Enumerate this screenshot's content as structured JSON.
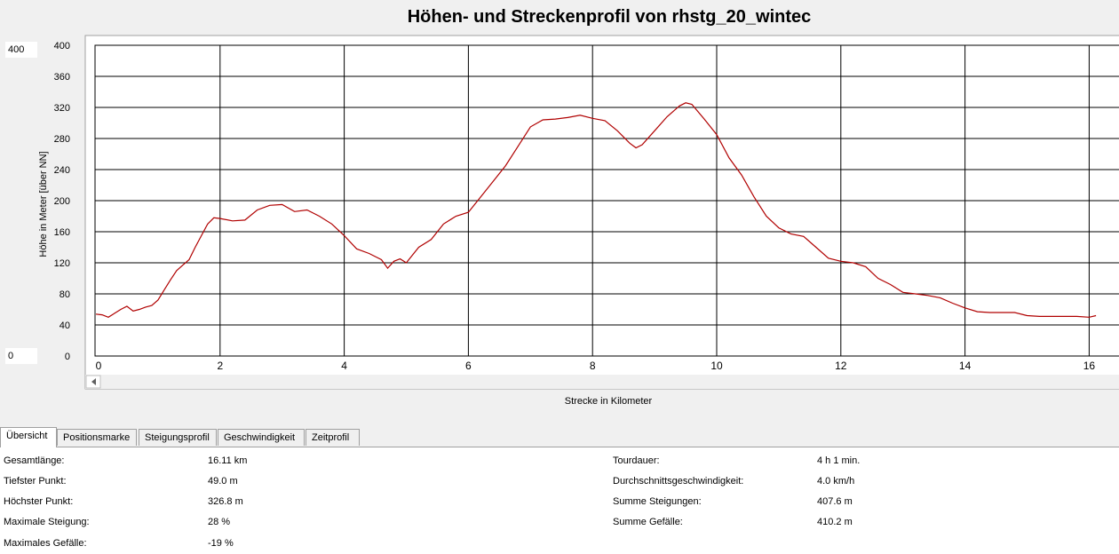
{
  "title": "Höhen- und Streckenprofil von rhstg_20_wintec",
  "y_max_input": "400",
  "y_min_input": "0",
  "chart_data": {
    "type": "line",
    "title": "Höhen- und Streckenprofil von rhstg_20_wintec",
    "xlabel": "Strecke in Kilometer",
    "ylabel": "Höhe in Meter [über NN]",
    "xlim": [
      0,
      16
    ],
    "ylim": [
      0,
      400
    ],
    "x_ticks": [
      "0",
      "2",
      "4",
      "6",
      "8",
      "10",
      "12",
      "14",
      "16"
    ],
    "y_ticks": [
      "0",
      "40",
      "80",
      "120",
      "160",
      "200",
      "240",
      "280",
      "320",
      "360",
      "400"
    ],
    "grid": true,
    "line_color": "#b00000",
    "series": [
      {
        "x": [
          0,
          0.1,
          0.2,
          0.3,
          0.4,
          0.5,
          0.6,
          0.7,
          0.8,
          0.9,
          1.0,
          1.1,
          1.2,
          1.3,
          1.4,
          1.5,
          1.6,
          1.7,
          1.8,
          1.9,
          2.0,
          2.2,
          2.4,
          2.6,
          2.8,
          3.0,
          3.2,
          3.4,
          3.6,
          3.8,
          4.0,
          4.2,
          4.4,
          4.6,
          4.7,
          4.8,
          4.9,
          5.0,
          5.2,
          5.4,
          5.6,
          5.8,
          6.0,
          6.2,
          6.4,
          6.6,
          6.8,
          7.0,
          7.2,
          7.4,
          7.6,
          7.8,
          8.0,
          8.2,
          8.4,
          8.6,
          8.7,
          8.8,
          9.0,
          9.2,
          9.4,
          9.5,
          9.6,
          9.8,
          10.0,
          10.2,
          10.4,
          10.6,
          10.8,
          11.0,
          11.2,
          11.4,
          11.6,
          11.8,
          12.0,
          12.2,
          12.4,
          12.6,
          12.8,
          13.0,
          13.2,
          13.4,
          13.6,
          13.8,
          14.0,
          14.2,
          14.4,
          14.6,
          14.8,
          15.0,
          15.2,
          15.4,
          15.6,
          15.8,
          16.0,
          16.11
        ],
        "y": [
          54,
          53,
          50,
          55,
          60,
          64,
          58,
          60,
          63,
          65,
          72,
          85,
          98,
          110,
          117,
          124,
          140,
          155,
          170,
          178,
          177,
          174,
          175,
          188,
          194,
          195,
          186,
          188,
          180,
          170,
          155,
          138,
          132,
          124,
          113,
          122,
          125,
          120,
          140,
          150,
          170,
          180,
          185,
          205,
          225,
          245,
          270,
          295,
          304,
          305,
          307,
          310,
          306,
          303,
          290,
          274,
          268,
          272,
          290,
          308,
          322,
          326,
          324,
          305,
          285,
          255,
          233,
          205,
          180,
          165,
          157,
          154,
          140,
          126,
          122,
          120,
          115,
          100,
          92,
          82,
          80,
          78,
          75,
          68,
          62,
          57,
          56,
          56,
          56,
          52,
          51,
          51,
          51,
          51,
          50,
          52
        ]
      }
    ]
  },
  "tabs": [
    "Übersicht",
    "Positionsmarke",
    "Steigungsprofil",
    "Geschwindigkeit",
    "Zeitprofil"
  ],
  "stats_left": [
    {
      "label": "Gesamtlänge:",
      "value": "16.11 km"
    },
    {
      "label": "Tiefster Punkt:",
      "value": "49.0 m"
    },
    {
      "label": "Höchster Punkt:",
      "value": "326.8 m"
    },
    {
      "label": "Maximale Steigung:",
      "value": "28 %"
    },
    {
      "label": "Maximales Gefälle:",
      "value": "-19 %"
    }
  ],
  "stats_right": [
    {
      "label": "Tourdauer:",
      "value": "4 h 1 min."
    },
    {
      "label": "Durchschnittsgeschwindigkeit:",
      "value": "4.0 km/h"
    },
    {
      "label": "Summe Steigungen:",
      "value": "407.6 m"
    },
    {
      "label": "Summe Gefälle:",
      "value": "410.2 m"
    }
  ]
}
